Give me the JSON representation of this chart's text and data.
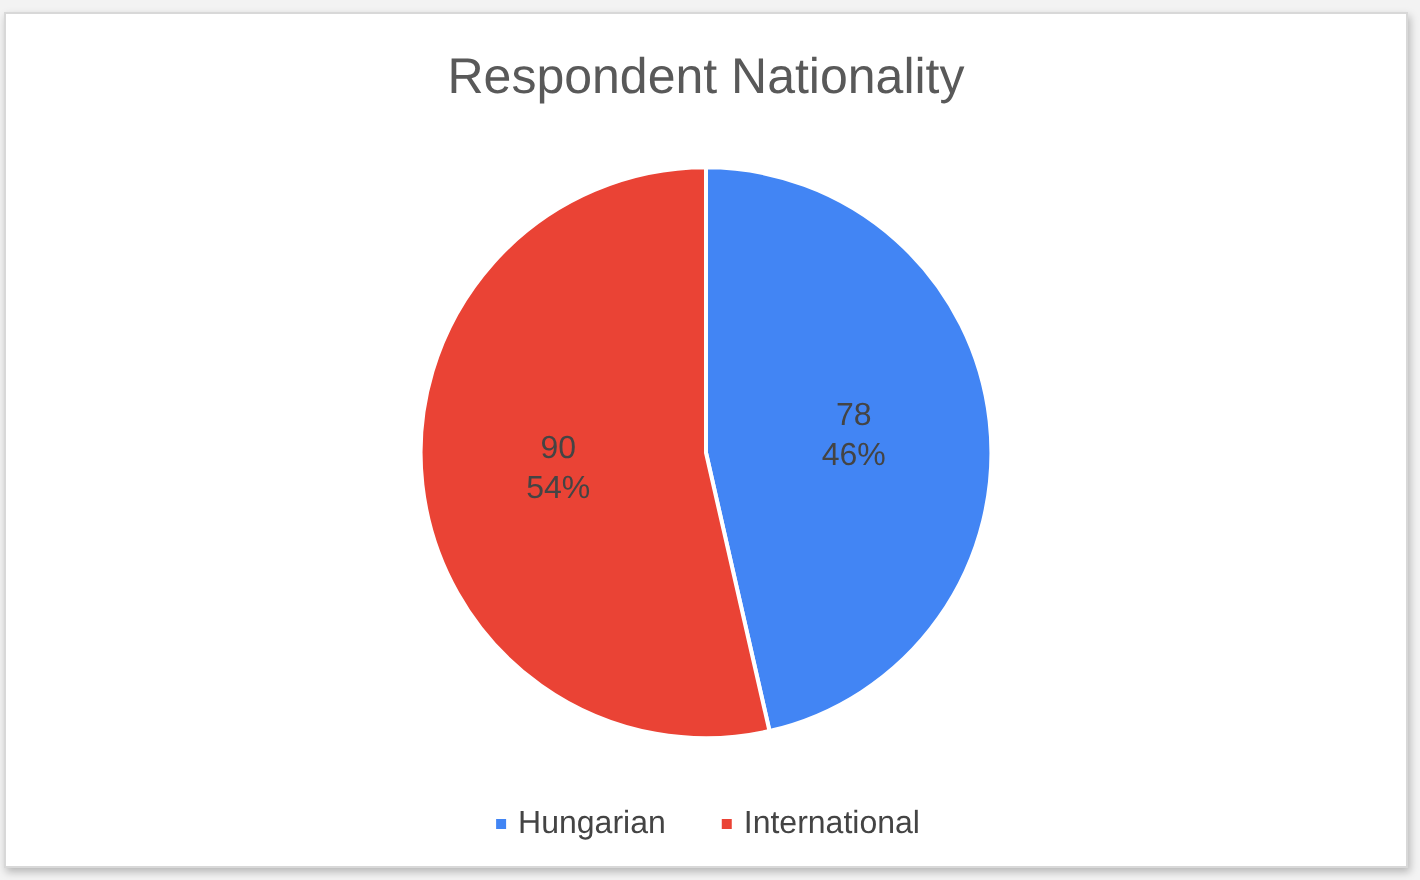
{
  "chart_data": {
    "type": "pie",
    "title": "Respondent Nationality",
    "categories": [
      "Hungarian",
      "International"
    ],
    "values": [
      78,
      90
    ],
    "colors": [
      "#4285f4",
      "#ea4335"
    ],
    "value_labels": [
      "78\n46%",
      "90\n54%"
    ],
    "legend": "bottom"
  }
}
